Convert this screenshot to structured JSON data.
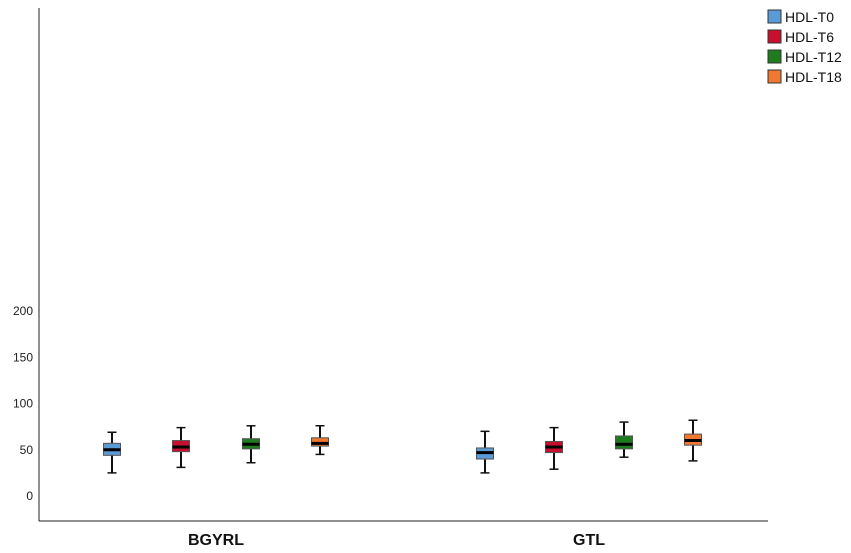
{
  "chart_data": {
    "type": "boxplot",
    "categories": [
      "BGYRL",
      "GTL"
    ],
    "ylim": [
      -10,
      210
    ],
    "yticks": [
      0,
      50,
      100,
      150,
      200
    ],
    "ytick_labels": [
      "0",
      "50",
      "100",
      "150",
      "200"
    ],
    "grid": false,
    "legend_position": "top-right",
    "series": [
      {
        "name": "HDL-T0",
        "color": "#5b9bd5",
        "boxes": [
          {
            "whisker_low": 25,
            "q1": 44,
            "median": 50,
            "q3": 57,
            "whisker_high": 69
          },
          {
            "whisker_low": 25,
            "q1": 40,
            "median": 47,
            "q3": 52,
            "whisker_high": 70
          }
        ]
      },
      {
        "name": "HDL-T6",
        "color": "#c8102e",
        "boxes": [
          {
            "whisker_low": 31,
            "q1": 48,
            "median": 53,
            "q3": 60,
            "whisker_high": 74
          },
          {
            "whisker_low": 29,
            "q1": 47,
            "median": 53,
            "q3": 59,
            "whisker_high": 74
          }
        ]
      },
      {
        "name": "HDL-T12",
        "color": "#1e7b1e",
        "boxes": [
          {
            "whisker_low": 36,
            "q1": 51,
            "median": 56,
            "q3": 62,
            "whisker_high": 76
          },
          {
            "whisker_low": 42,
            "q1": 51,
            "median": 56,
            "q3": 65,
            "whisker_high": 80
          }
        ]
      },
      {
        "name": "HDL-T18",
        "color": "#f07830",
        "boxes": [
          {
            "whisker_low": 45,
            "q1": 54,
            "median": 57,
            "q3": 63,
            "whisker_high": 76
          },
          {
            "whisker_low": 38,
            "q1": 55,
            "median": 60,
            "q3": 67,
            "whisker_high": 82
          }
        ]
      }
    ]
  }
}
